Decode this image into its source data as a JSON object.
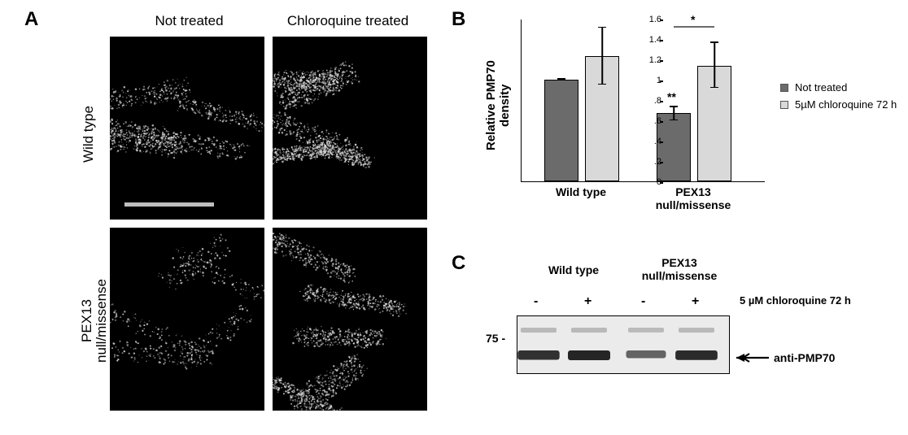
{
  "panelA": {
    "label": "A",
    "col_headers": [
      "Not treated",
      "Chloroquine treated"
    ],
    "row_headers": [
      "Wild type",
      "PEX13\nnull/missense"
    ],
    "images": {
      "wt_nt": {
        "density": "medium",
        "seed": 11
      },
      "wt_cq": {
        "density": "high",
        "seed": 22
      },
      "pex_nt": {
        "density": "low",
        "seed": 33
      },
      "pex_cq": {
        "density": "high",
        "seed": 44
      }
    },
    "scalebar_in": "wt_nt",
    "speck_color": "#d8d8d8"
  },
  "panelB": {
    "label": "B",
    "ylabel": "Relative PMP70 density",
    "ylim": [
      0,
      1.6
    ],
    "ytick_step": 0.2,
    "yticks": [
      0,
      0.2,
      0.4,
      0.6,
      0.8,
      1.0,
      1.2,
      1.4,
      1.6
    ],
    "groups": [
      {
        "name": "Wild type",
        "bars": [
          {
            "series": "nt",
            "value": 1.0,
            "err_low": 0.99,
            "err_high": 1.01,
            "sig": ""
          },
          {
            "series": "cq",
            "value": 1.23,
            "err_low": 0.95,
            "err_high": 1.52,
            "sig": ""
          }
        ]
      },
      {
        "name": "PEX13\nnull/missense",
        "bars": [
          {
            "series": "nt",
            "value": 0.67,
            "err_low": 0.6,
            "err_high": 0.74,
            "sig": "**"
          },
          {
            "series": "cq",
            "value": 1.14,
            "err_low": 0.92,
            "err_high": 1.37,
            "sig": ""
          }
        ],
        "bracket": {
          "from_bar": 0,
          "to_bar": 1,
          "label": "*"
        }
      }
    ],
    "series_colors": {
      "nt": "#6b6b6b",
      "cq": "#d9d9d9"
    },
    "legend": [
      {
        "sw": "#6b6b6b",
        "label": "Not treated"
      },
      {
        "sw": "#d9d9d9",
        "label": "5µM chloroquine 72 h"
      }
    ]
  },
  "panelC": {
    "label": "C",
    "group_headers": [
      "Wild type",
      "PEX13\nnull/missense"
    ],
    "lane_signs": [
      "-",
      "+",
      "-",
      "+"
    ],
    "treatment_label": "5 µM chloroquine 72 h",
    "mw_marker": "75 -",
    "antibody_label": "anti-PMP70",
    "upper_band_intensity": [
      0.25,
      0.25,
      0.22,
      0.25
    ],
    "lower_band_intensity": [
      0.9,
      1.0,
      0.5,
      0.95
    ],
    "band_color": "#1a1a1a",
    "bg_color": "#ebebeb"
  }
}
